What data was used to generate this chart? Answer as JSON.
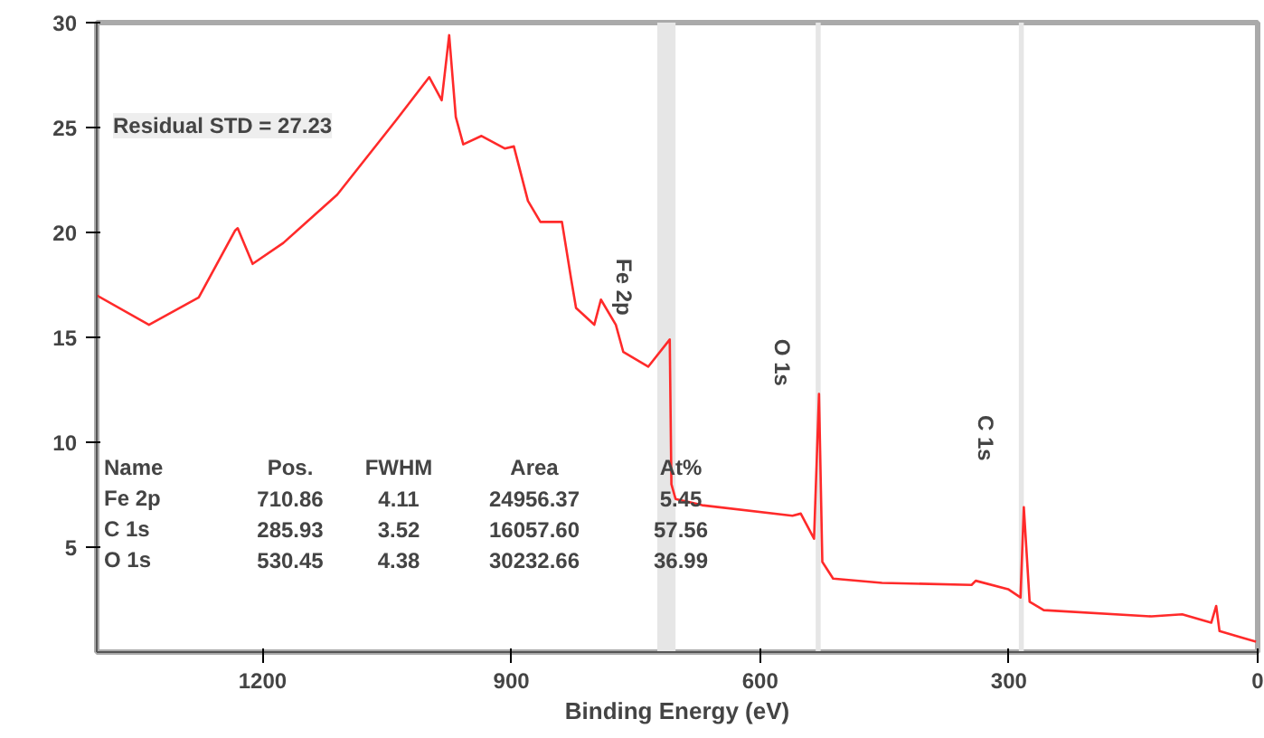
{
  "chart_data": {
    "type": "line",
    "xlabel": "Binding Energy (eV)",
    "x": [
      1400,
      1337,
      1277,
      1233,
      1230,
      1212,
      1175,
      1110,
      1038,
      999,
      984,
      975,
      967,
      958,
      936,
      908,
      897,
      880,
      865,
      839,
      828,
      822,
      800,
      792,
      774,
      765,
      735,
      709,
      707,
      702,
      670,
      561,
      551,
      535,
      529,
      525,
      512,
      453,
      345,
      340,
      301,
      286,
      282,
      275,
      258,
      128,
      91,
      56,
      50,
      46,
      20,
      2
    ],
    "series": [
      {
        "color": "#ff2a2a",
        "values": [
          17.0,
          15.6,
          16.9,
          20.1,
          20.2,
          18.5,
          19.5,
          21.8,
          25.4,
          27.4,
          26.3,
          29.4,
          25.5,
          24.2,
          24.6,
          24.0,
          24.1,
          21.5,
          20.5,
          20.5,
          17.8,
          16.4,
          15.6,
          16.8,
          15.6,
          14.3,
          13.6,
          14.9,
          8.0,
          7.3,
          7.0,
          6.5,
          6.6,
          5.4,
          12.3,
          4.3,
          3.5,
          3.3,
          3.2,
          3.4,
          3.0,
          2.6,
          6.9,
          2.4,
          2.0,
          1.7,
          1.8,
          1.4,
          2.2,
          1.0,
          0.7,
          0.5
        ]
      }
    ],
    "xlim": [
      1400,
      0
    ],
    "xticks": [
      1200,
      900,
      600,
      300,
      0
    ],
    "ylim": [
      0,
      30
    ],
    "yticks": [
      5,
      10,
      15,
      20,
      25,
      30
    ],
    "bands": [
      {
        "axis": "x",
        "from": 702,
        "to": 724,
        "label": "Fe 2p",
        "color": "#e6e6e6"
      },
      {
        "axis": "x",
        "from": 527,
        "to": 533,
        "label": "O 1s",
        "color": "#e6e6e6"
      },
      {
        "axis": "x",
        "from": 282,
        "to": 288,
        "label": "C 1s",
        "color": "#e6e6e6"
      }
    ],
    "annotations": [
      "Residual STD = 27.23",
      "Name",
      "Pos.",
      "FWHM",
      "Area",
      "At%",
      "Fe 2p",
      "710.86",
      "4.11",
      "24956.37",
      "5.45",
      "C 1s",
      "285.93",
      "3.52",
      "16057.60",
      "57.56",
      "O 1s",
      "530.45",
      "4.38",
      "30232.66",
      "36.99"
    ],
    "grid": false,
    "line_style": "solid",
    "marker": "none"
  }
}
